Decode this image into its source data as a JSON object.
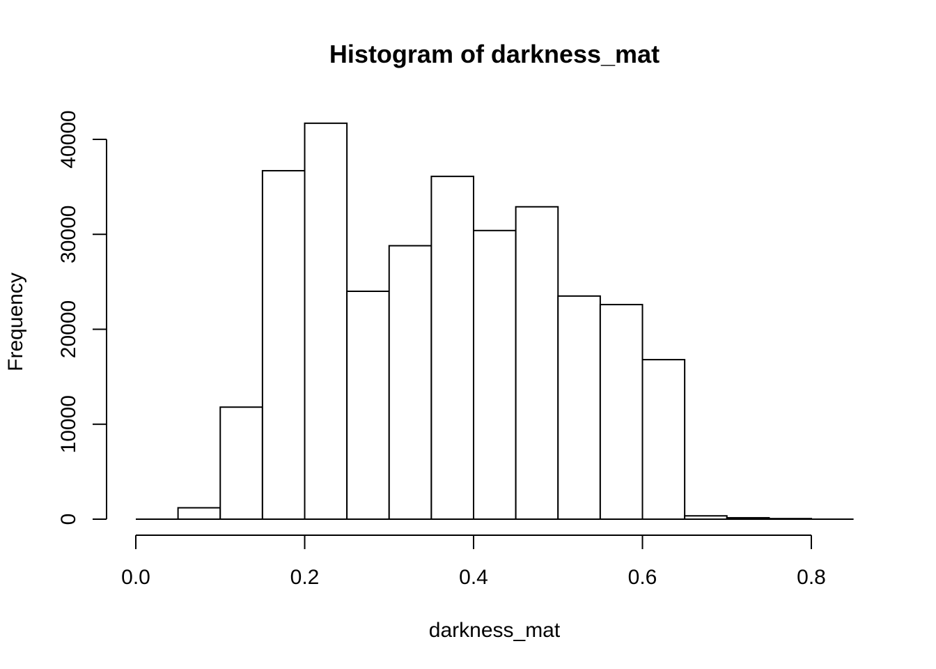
{
  "chart_data": {
    "type": "bar",
    "title": "Histogram of darkness_mat",
    "xlabel": "darkness_mat",
    "ylabel": "Frequency",
    "xlim": [
      0.0,
      0.85
    ],
    "ylim": [
      0,
      42000
    ],
    "x_ticks": [
      "0.0",
      "0.2",
      "0.4",
      "0.6",
      "0.8"
    ],
    "y_ticks": [
      "0",
      "10000",
      "20000",
      "30000",
      "40000"
    ],
    "bin_width": 0.05,
    "bins": [
      {
        "start": 0.0,
        "end": 0.05,
        "count": 0
      },
      {
        "start": 0.05,
        "end": 0.1,
        "count": 1200
      },
      {
        "start": 0.1,
        "end": 0.15,
        "count": 11800
      },
      {
        "start": 0.15,
        "end": 0.2,
        "count": 36700
      },
      {
        "start": 0.2,
        "end": 0.25,
        "count": 41700
      },
      {
        "start": 0.25,
        "end": 0.3,
        "count": 24000
      },
      {
        "start": 0.3,
        "end": 0.35,
        "count": 28800
      },
      {
        "start": 0.35,
        "end": 0.4,
        "count": 36100
      },
      {
        "start": 0.4,
        "end": 0.45,
        "count": 30400
      },
      {
        "start": 0.45,
        "end": 0.5,
        "count": 32900
      },
      {
        "start": 0.5,
        "end": 0.55,
        "count": 23500
      },
      {
        "start": 0.55,
        "end": 0.6,
        "count": 22600
      },
      {
        "start": 0.6,
        "end": 0.65,
        "count": 16800
      },
      {
        "start": 0.65,
        "end": 0.7,
        "count": 350
      },
      {
        "start": 0.7,
        "end": 0.75,
        "count": 150
      },
      {
        "start": 0.75,
        "end": 0.8,
        "count": 60
      },
      {
        "start": 0.8,
        "end": 0.85,
        "count": 0
      }
    ],
    "grid": false,
    "legend": "none"
  }
}
